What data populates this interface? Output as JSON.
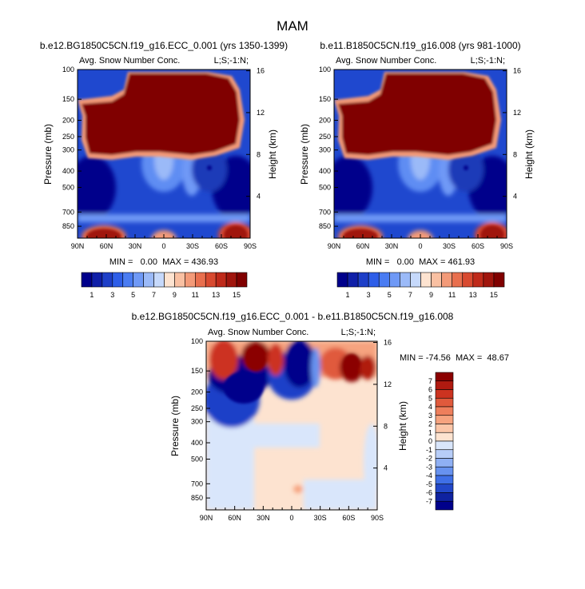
{
  "page_title": "MAM",
  "chart_data": [
    {
      "type": "heatmap",
      "title": "b.e12.BG1850C5CN.f19_g16.ECC_0.001 (yrs 1350-1399)",
      "subtitle_left": "Avg. Snow Number Conc.",
      "subtitle_right": "L;S;-1:N;",
      "ylabel": "Pressure (mb)",
      "ylabel_right": "Height (km)",
      "x_ticks": [
        "90N",
        "60N",
        "30N",
        "0",
        "30S",
        "60S",
        "90S"
      ],
      "y_ticks": [
        "100",
        "150",
        "200",
        "250",
        "300",
        "400",
        "500",
        "700",
        "850"
      ],
      "y_ticks_right": [
        "16",
        "12",
        "8",
        "4"
      ],
      "stats": "MIN =   0.00  MAX = 436.93",
      "ylim": [
        1000,
        100
      ]
    },
    {
      "type": "heatmap",
      "title": "b.e11.B1850C5CN.f19_g16.008 (yrs 981-1000)",
      "subtitle_left": "Avg. Snow Number Conc.",
      "subtitle_right": "L;S;-1:N;",
      "ylabel": "Pressure (mb)",
      "ylabel_right": "Height (km)",
      "x_ticks": [
        "90N",
        "60N",
        "30N",
        "0",
        "30S",
        "60S",
        "90S"
      ],
      "y_ticks": [
        "100",
        "150",
        "200",
        "250",
        "300",
        "400",
        "500",
        "700",
        "850"
      ],
      "y_ticks_right": [
        "16",
        "12",
        "8",
        "4"
      ],
      "stats": "MIN =   0.00  MAX = 461.93",
      "ylim": [
        1000,
        100
      ]
    },
    {
      "type": "heatmap",
      "title": "b.e12.BG1850C5CN.f19_g16.ECC_0.001 - b.e11.B1850C5CN.f19_g16.008",
      "subtitle_left": "Avg. Snow Number Conc.",
      "subtitle_right": "L;S;-1:N;",
      "ylabel": "Pressure (mb)",
      "ylabel_right": "Height (km)",
      "x_ticks": [
        "90N",
        "60N",
        "30N",
        "0",
        "30S",
        "60S",
        "90S"
      ],
      "y_ticks": [
        "100",
        "150",
        "200",
        "250",
        "300",
        "400",
        "500",
        "700",
        "850"
      ],
      "y_ticks_right": [
        "16",
        "12",
        "8",
        "4"
      ],
      "stats": "MIN = -74.56  MAX =  48.67",
      "ylim": [
        1000,
        100
      ]
    }
  ],
  "colorbar_top": {
    "labels": [
      "1",
      "3",
      "5",
      "7",
      "9",
      "11",
      "13",
      "15"
    ],
    "colors": [
      "#00008b",
      "#0f1fa8",
      "#1e3fc8",
      "#2e5ee8",
      "#4a7cf2",
      "#6f99f6",
      "#9bbaf8",
      "#c6d9fb",
      "#fde3d0",
      "#f9c0a2",
      "#f39a78",
      "#e86f4e",
      "#d84a30",
      "#bf2a1a",
      "#a0150d",
      "#800000"
    ]
  },
  "colorbar_diff": {
    "labels": [
      "7",
      "6",
      "5",
      "4",
      "3",
      "2",
      "1",
      "0",
      "-1",
      "-2",
      "-3",
      "-4",
      "-5",
      "-6",
      "-7"
    ],
    "colors": [
      "#8b0000",
      "#b01a10",
      "#cc3320",
      "#e05a3c",
      "#ee7f5c",
      "#f6a37f",
      "#fbc6a8",
      "#fde3d0",
      "#d9e6fb",
      "#b7cdf8",
      "#8fb0f4",
      "#6792ef",
      "#3f6fe6",
      "#2247c8",
      "#0f22a0",
      "#00008b"
    ]
  }
}
